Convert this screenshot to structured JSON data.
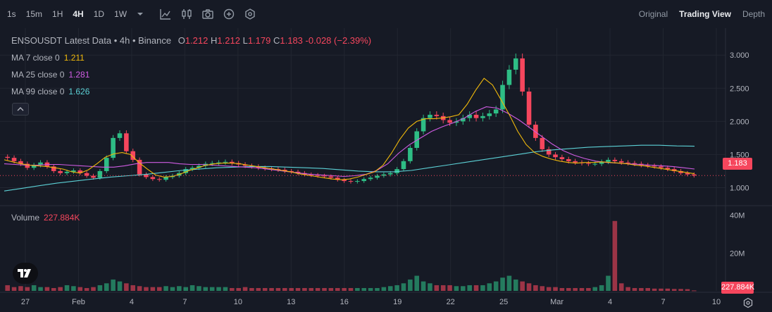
{
  "toolbar": {
    "intervals": [
      {
        "label": "1s",
        "active": false
      },
      {
        "label": "15m",
        "active": false
      },
      {
        "label": "1H",
        "active": false
      },
      {
        "label": "4H",
        "active": true
      },
      {
        "label": "1D",
        "active": false
      },
      {
        "label": "1W",
        "active": false
      }
    ],
    "more_icon": "chevron-down-icon",
    "tools": [
      "indicator-icon",
      "chart-type-icon",
      "screenshot-icon",
      "add-icon",
      "settings-hex-icon"
    ],
    "views": [
      {
        "label": "Original",
        "active": false
      },
      {
        "label": "Trading View",
        "active": true
      },
      {
        "label": "Depth",
        "active": false
      }
    ]
  },
  "legend": {
    "title": "ENSOUSDT Latest Data • 4h • Binance",
    "ohlc": {
      "o_label": "O",
      "o": "1.212",
      "h_label": "H",
      "h": "1.212",
      "l_label": "L",
      "l": "1.179",
      "c_label": "C",
      "c": "1.183",
      "change": "-0.028 (−2.39%)"
    },
    "ma": [
      {
        "label": "MA 7 close 0",
        "value": "1.211",
        "color": "#f0b90b"
      },
      {
        "label": "MA 25 close 0",
        "value": "1.281",
        "color": "#d05ce3"
      },
      {
        "label": "MA 99 close 0",
        "value": "1.626",
        "color": "#5cd1d6"
      }
    ],
    "volume_label": "Volume",
    "volume_value": "227.884K"
  },
  "colors": {
    "up": "#2ebd85",
    "down": "#f6465d",
    "grid": "#222631",
    "background": "#161a25"
  },
  "chart_data": {
    "type": "candlestick",
    "symbol": "ENSOUSDT",
    "interval": "4h",
    "price_axis": {
      "ticks": [
        "3.000",
        "2.500",
        "2.000",
        "1.500",
        "1.000"
      ],
      "ylim": [
        0.75,
        3.3
      ]
    },
    "volume_axis": {
      "ticks": [
        "40M",
        "20M"
      ],
      "ylim": [
        0,
        44000000
      ]
    },
    "x_ticks": [
      "27",
      "Feb",
      "4",
      "7",
      "10",
      "13",
      "16",
      "19",
      "22",
      "25",
      "Mar",
      "4",
      "7",
      "10"
    ],
    "last_price": "1.183",
    "last_volume": "227.884K",
    "price_series": [
      1.45,
      1.4,
      1.36,
      1.3,
      1.34,
      1.38,
      1.32,
      1.25,
      1.22,
      1.24,
      1.26,
      1.22,
      1.18,
      1.15,
      1.25,
      1.45,
      1.75,
      1.82,
      1.55,
      1.42,
      1.2,
      1.16,
      1.13,
      1.12,
      1.16,
      1.18,
      1.22,
      1.28,
      1.3,
      1.33,
      1.36,
      1.37,
      1.38,
      1.39,
      1.37,
      1.35,
      1.33,
      1.32,
      1.3,
      1.29,
      1.28,
      1.27,
      1.25,
      1.24,
      1.22,
      1.2,
      1.19,
      1.18,
      1.17,
      1.15,
      1.12,
      1.1,
      1.09,
      1.1,
      1.13,
      1.15,
      1.18,
      1.2,
      1.22,
      1.28,
      1.4,
      1.6,
      1.85,
      2.05,
      2.1,
      2.08,
      2.02,
      1.98,
      2.0,
      2.05,
      2.1,
      2.05,
      2.08,
      2.12,
      2.18,
      2.55,
      2.78,
      2.95,
      2.45,
      1.95,
      1.75,
      1.58,
      1.5,
      1.46,
      1.43,
      1.4,
      1.38,
      1.37,
      1.36,
      1.36,
      1.39,
      1.42,
      1.4,
      1.38,
      1.37,
      1.36,
      1.34,
      1.33,
      1.32,
      1.3,
      1.28,
      1.25,
      1.22,
      1.2,
      1.183
    ],
    "ma7": [
      1.42,
      1.39,
      1.36,
      1.34,
      1.33,
      1.32,
      1.3,
      1.28,
      1.24,
      1.22,
      1.27,
      1.36,
      1.46,
      1.51,
      1.53,
      1.5,
      1.38,
      1.28,
      1.19,
      1.16,
      1.17,
      1.21,
      1.26,
      1.3,
      1.34,
      1.36,
      1.37,
      1.37,
      1.36,
      1.34,
      1.32,
      1.3,
      1.28,
      1.26,
      1.24,
      1.21,
      1.19,
      1.17,
      1.15,
      1.13,
      1.12,
      1.13,
      1.16,
      1.2,
      1.24,
      1.34,
      1.52,
      1.73,
      1.9,
      2.0,
      2.04,
      2.04,
      2.05,
      2.07,
      2.1,
      2.26,
      2.47,
      2.65,
      2.55,
      2.33,
      2.1,
      1.85,
      1.65,
      1.53,
      1.47,
      1.43,
      1.4,
      1.38,
      1.37,
      1.38,
      1.38,
      1.39,
      1.38,
      1.37,
      1.36,
      1.34,
      1.33,
      1.31,
      1.29,
      1.27,
      1.25,
      1.23,
      1.21
    ],
    "ma25": [
      1.36,
      1.35,
      1.34,
      1.34,
      1.35,
      1.35,
      1.34,
      1.33,
      1.32,
      1.31,
      1.31,
      1.33,
      1.36,
      1.38,
      1.38,
      1.38,
      1.36,
      1.35,
      1.35,
      1.34,
      1.33,
      1.32,
      1.31,
      1.3,
      1.28,
      1.26,
      1.24,
      1.22,
      1.2,
      1.19,
      1.18,
      1.17,
      1.18,
      1.2,
      1.26,
      1.36,
      1.52,
      1.65,
      1.75,
      1.85,
      1.92,
      1.98,
      2.05,
      2.15,
      2.22,
      2.2,
      2.12,
      2.02,
      1.9,
      1.78,
      1.66,
      1.56,
      1.49,
      1.44,
      1.4,
      1.38,
      1.37,
      1.36,
      1.35,
      1.34,
      1.33,
      1.32,
      1.3,
      1.281
    ],
    "ma99": [
      0.95,
      0.99,
      1.03,
      1.07,
      1.1,
      1.13,
      1.16,
      1.18,
      1.2,
      1.23,
      1.26,
      1.28,
      1.3,
      1.31,
      1.32,
      1.32,
      1.31,
      1.3,
      1.29,
      1.27,
      1.25,
      1.24,
      1.24,
      1.26,
      1.3,
      1.34,
      1.38,
      1.42,
      1.46,
      1.5,
      1.54,
      1.57,
      1.59,
      1.61,
      1.62,
      1.63,
      1.64,
      1.64,
      1.63,
      1.626
    ],
    "volume_series": [
      3,
      2,
      2.5,
      2,
      3,
      2,
      2,
      1.5,
      2,
      3,
      2.5,
      2,
      1.5,
      2,
      3,
      4,
      6,
      5,
      4,
      3,
      2.5,
      2,
      2,
      2,
      2.5,
      2,
      2.5,
      2,
      3,
      2.5,
      2,
      2,
      2,
      2,
      1.5,
      1.5,
      2,
      1.5,
      1.5,
      1.5,
      1.5,
      1.5,
      1.5,
      1.5,
      1.5,
      1.5,
      1.5,
      1.5,
      1.5,
      1.5,
      1.5,
      1.5,
      1.5,
      1.5,
      1.5,
      1.5,
      1.5,
      2,
      2.5,
      3,
      4,
      6,
      8,
      5,
      4,
      3,
      3,
      3,
      2.5,
      2.5,
      3,
      3,
      3,
      4,
      5,
      7,
      8,
      6,
      5,
      4,
      3,
      2.5,
      2,
      2,
      1.5,
      1.5,
      1.5,
      1.5,
      1.5,
      2,
      3,
      8,
      37,
      4,
      2,
      1.5,
      1.5,
      1.5,
      1.2,
      1.2,
      1.2,
      1.0,
      1.0,
      0.9,
      0.228
    ]
  }
}
